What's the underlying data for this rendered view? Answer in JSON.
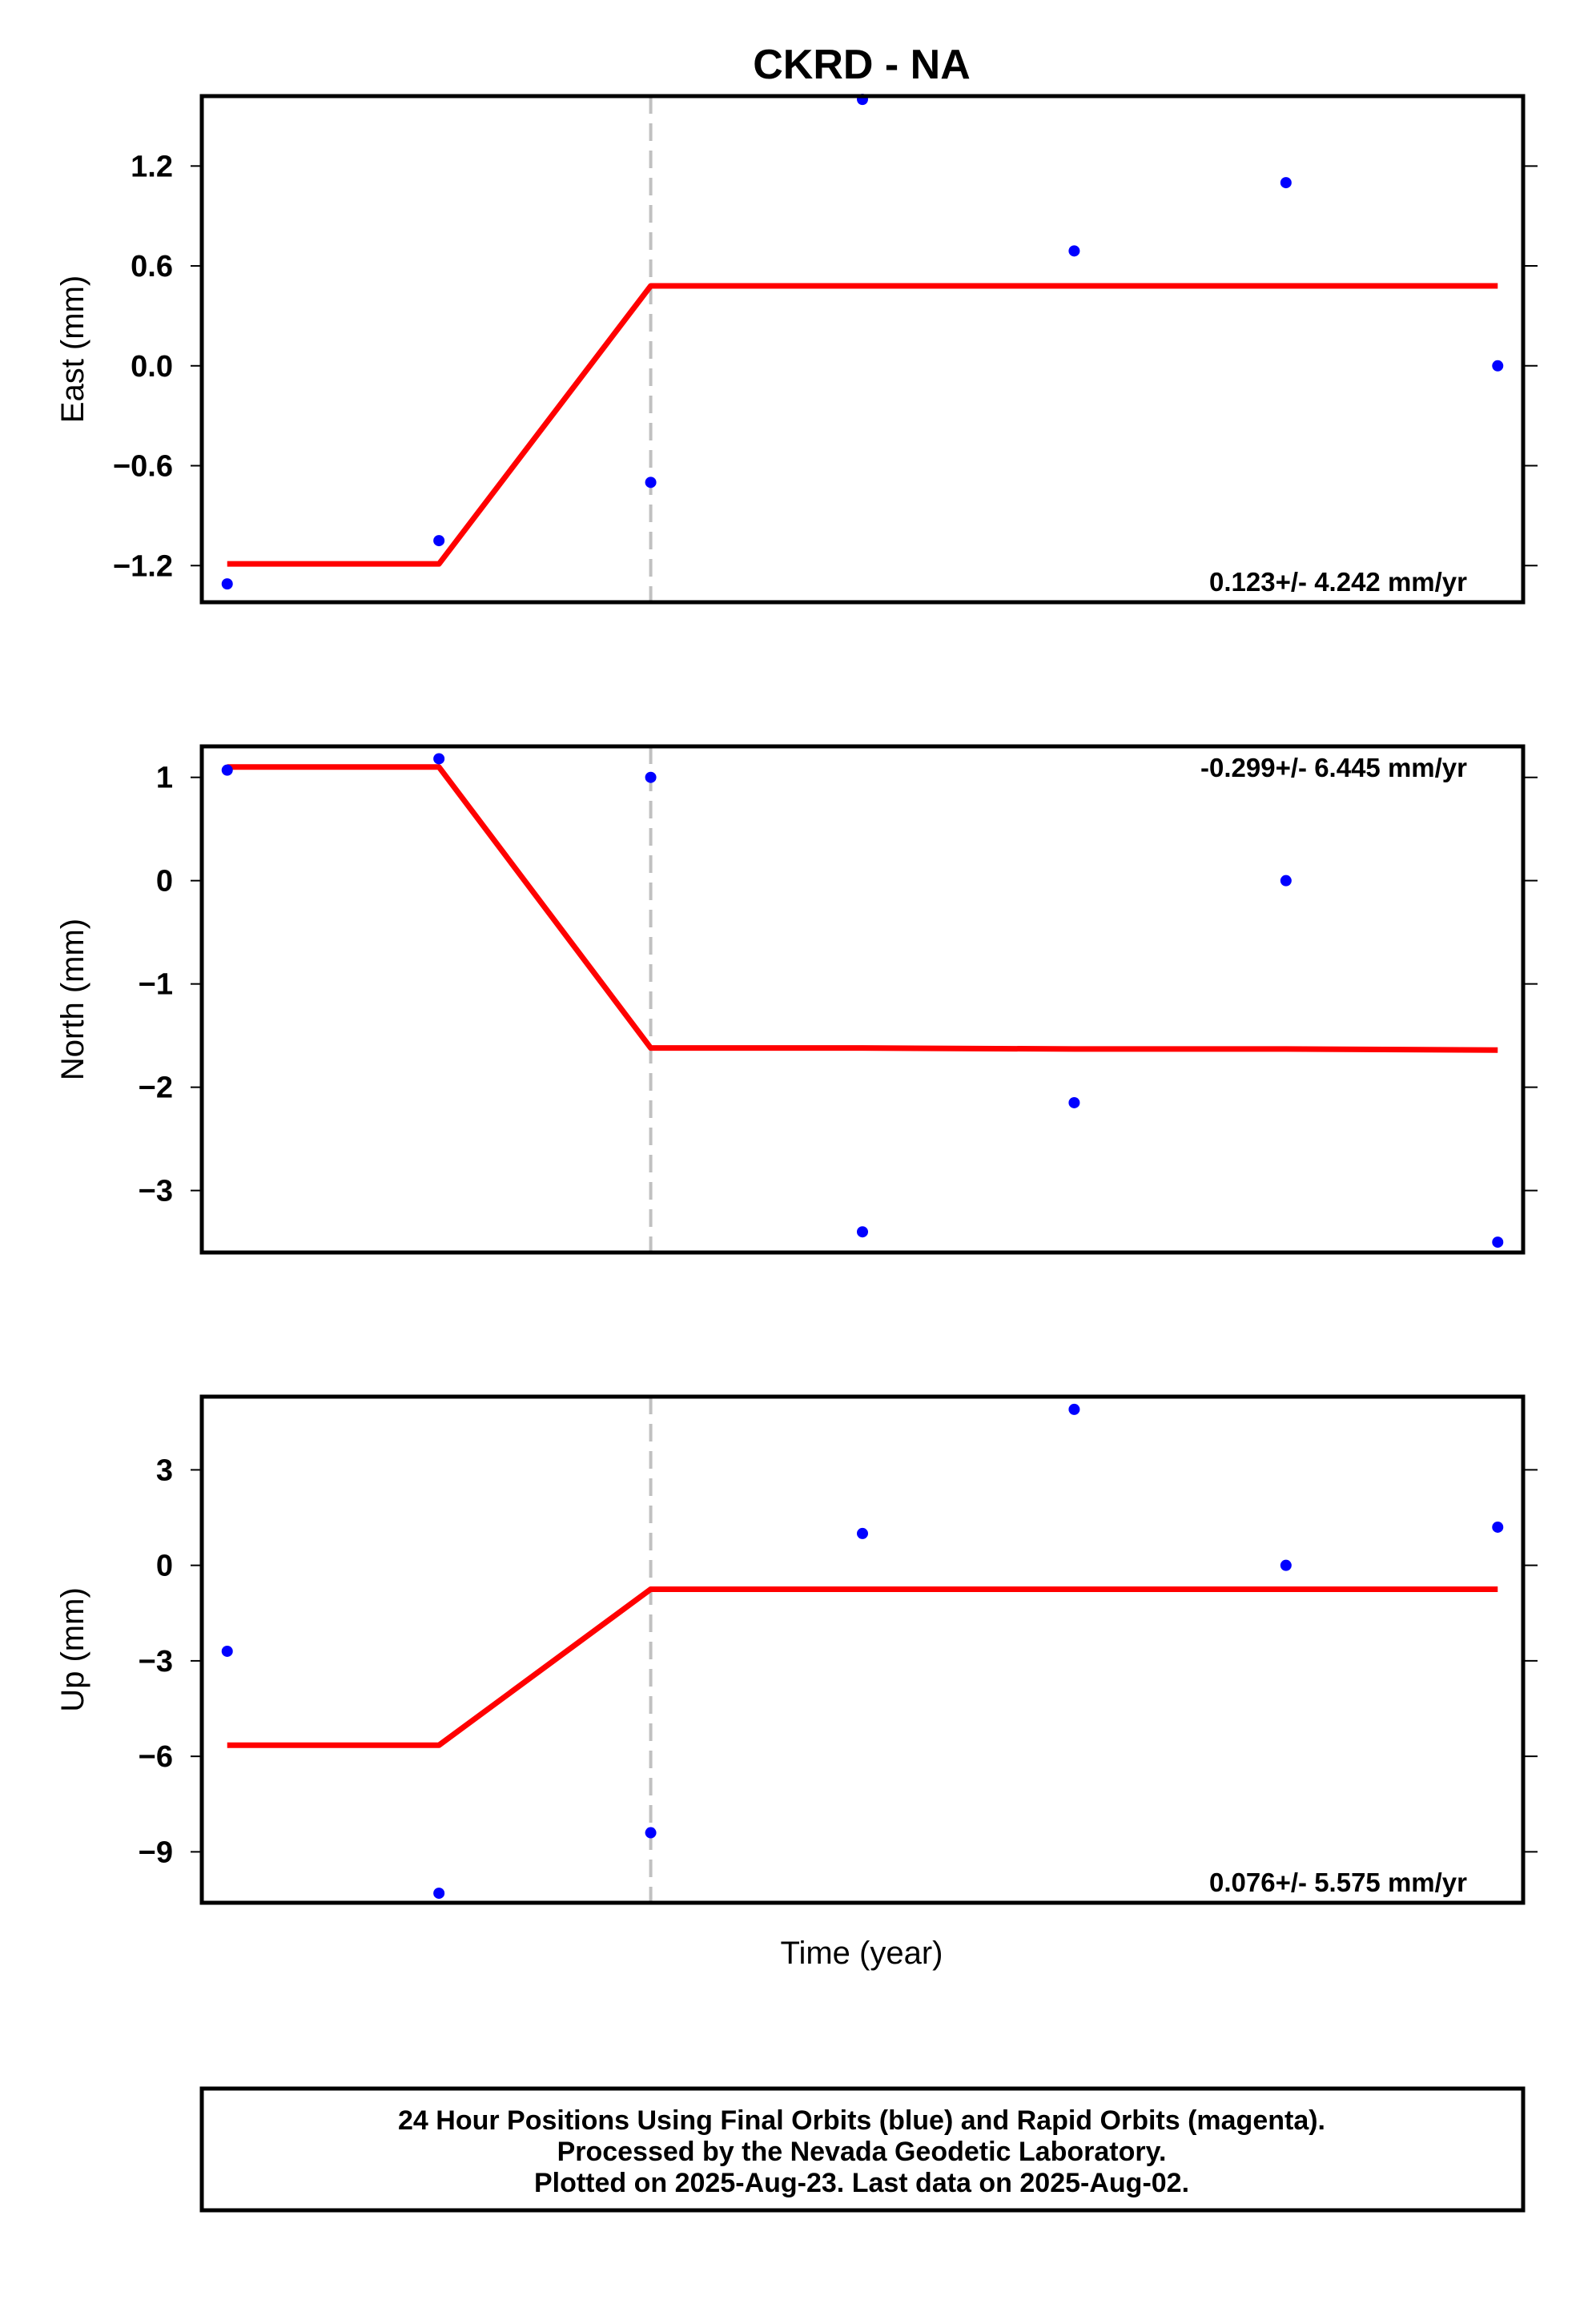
{
  "chart_data": [
    {
      "type": "scatter",
      "title": "CKRD - NA",
      "ylabel": "East (mm)",
      "xlabel": "",
      "ylim": [
        -1.42,
        1.62
      ],
      "y_ticks": [
        1.2,
        0.6,
        0.0,
        -0.6,
        -1.2
      ],
      "y_tick_labels": [
        "1.2",
        "0.6",
        "0.0",
        "−0.6",
        "−1.2"
      ],
      "x": [
        0,
        1,
        2,
        3,
        4,
        5,
        6
      ],
      "xlim": [
        -0.12,
        6.12
      ],
      "series": [
        {
          "kind": "points",
          "color": "#0000ff",
          "values": [
            -1.31,
            -1.05,
            -0.7,
            1.6,
            0.69,
            1.1,
            0.0
          ]
        },
        {
          "kind": "fit",
          "color": "#ff0000",
          "values": [
            -1.19,
            -1.19,
            0.48,
            0.48,
            0.48,
            0.48,
            0.48
          ]
        }
      ],
      "break_x": 2,
      "rate_text": "0.123+/- 4.242 mm/yr",
      "rate_position": "bottom-right"
    },
    {
      "type": "scatter",
      "title": "",
      "ylabel": "North (mm)",
      "xlabel": "",
      "ylim": [
        -3.6,
        1.3
      ],
      "y_ticks": [
        1,
        0,
        -1,
        -2,
        -3
      ],
      "y_tick_labels": [
        "1",
        "0",
        "−1",
        "−2",
        "−3"
      ],
      "x": [
        0,
        1,
        2,
        3,
        4,
        5,
        6
      ],
      "xlim": [
        -0.12,
        6.12
      ],
      "series": [
        {
          "kind": "points",
          "color": "#0000ff",
          "values": [
            1.07,
            1.18,
            1.0,
            -3.4,
            -2.15,
            0.0,
            -3.5
          ]
        },
        {
          "kind": "fit",
          "color": "#ff0000",
          "values": [
            1.1,
            1.1,
            -1.62,
            -1.62,
            -1.63,
            -1.63,
            -1.64
          ]
        }
      ],
      "break_x": 2,
      "rate_text": "-0.299+/- 6.445 mm/yr",
      "rate_position": "top-right"
    },
    {
      "type": "scatter",
      "title": "",
      "ylabel": "Up (mm)",
      "xlabel": "Time (year)",
      "ylim": [
        -10.6,
        5.3
      ],
      "y_ticks": [
        3,
        0,
        -3,
        -6,
        -9
      ],
      "y_tick_labels": [
        "3",
        "0",
        "−3",
        "−6",
        "−9"
      ],
      "x": [
        0,
        1,
        2,
        3,
        4,
        5,
        6
      ],
      "xlim": [
        -0.12,
        6.12
      ],
      "series": [
        {
          "kind": "points",
          "color": "#0000ff",
          "values": [
            -2.7,
            -10.3,
            -8.4,
            1.0,
            4.9,
            0.0,
            1.2
          ]
        },
        {
          "kind": "fit",
          "color": "#ff0000",
          "values": [
            -5.65,
            -5.65,
            -0.75,
            -0.75,
            -0.75,
            -0.75,
            -0.75
          ]
        }
      ],
      "break_x": 2,
      "rate_text": "0.076+/- 5.575 mm/yr",
      "rate_position": "bottom-right"
    }
  ],
  "footer": {
    "line1": "24 Hour Positions Using Final Orbits (blue) and Rapid Orbits (magenta).",
    "line2": "Processed by the Nevada Geodetic Laboratory.",
    "line3": "Plotted on 2025-Aug-23. Last data on 2025-Aug-02."
  },
  "colors": {
    "points": "#0000ff",
    "fit": "#ff0000",
    "break_line": "#c0c0c0",
    "frame": "#000000"
  }
}
